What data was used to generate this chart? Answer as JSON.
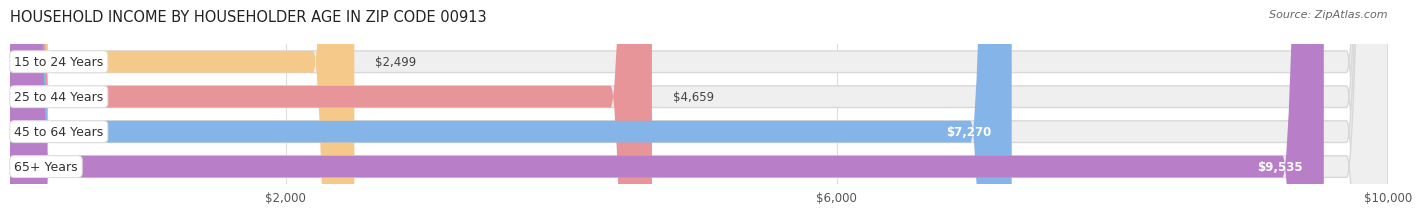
{
  "title": "HOUSEHOLD INCOME BY HOUSEHOLDER AGE IN ZIP CODE 00913",
  "source": "Source: ZipAtlas.com",
  "categories": [
    "15 to 24 Years",
    "25 to 44 Years",
    "45 to 64 Years",
    "65+ Years"
  ],
  "values": [
    2499,
    4659,
    7270,
    9535
  ],
  "labels": [
    "$2,499",
    "$4,659",
    "$7,270",
    "$9,535"
  ],
  "bar_colors": [
    "#f5c98a",
    "#e8959a",
    "#85b5e8",
    "#b87fc8"
  ],
  "xmin": 0,
  "xmax": 10000,
  "xticks": [
    2000,
    6000,
    10000
  ],
  "xticklabels": [
    "$2,000",
    "$6,000",
    "$10,000"
  ],
  "label_inside_threshold": 5500,
  "figwidth": 14.06,
  "figheight": 2.33,
  "bar_height": 0.62,
  "bar_gap": 1.0,
  "cat_label_fontsize": 9,
  "val_label_fontsize": 8.5,
  "title_fontsize": 10.5,
  "source_fontsize": 8,
  "xtick_fontsize": 8.5,
  "grid_color": "#dddddd",
  "bg_bar_color": "#efefef",
  "bg_bar_edge_color": "#d8d8d8",
  "cat_label_bg": "#ffffff"
}
